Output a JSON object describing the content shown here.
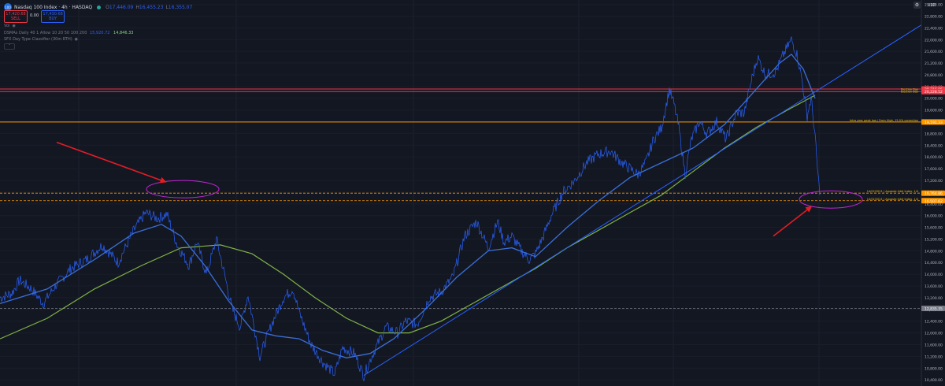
{
  "header": {
    "logo_text": "100",
    "title": "Nasdaq 100 Index · 4h · HASDAQ",
    "ohlc": [
      {
        "k": "O",
        "v": "17,446.09"
      },
      {
        "k": "H",
        "v": "16,455.23"
      },
      {
        "k": "L",
        "v": "16,355.07"
      }
    ],
    "sell_price": "17,420.68",
    "sell_label": "SELL",
    "spread": "0.00",
    "buy_price": "17,430.68",
    "buy_label": "BUY",
    "vol_label": "Vol",
    "indicator_1_name": "DSMAs Daily 40 1 Allow 10 20 50 100 200",
    "indicator_1_val1": "15,920.72",
    "indicator_1_val2": "14,846.33",
    "indicator_2_name": "SFX Day Type Classifier (30m RTH)",
    "collapse_icon": "chevron-up",
    "currency": "USD",
    "top_icon_1": "settings-icon",
    "top_icon_2": "lock-icon"
  },
  "chart_data": {
    "type": "line",
    "symbol": "Nasdaq 100 Index",
    "interval": "4h",
    "exchange": "HASDAQ",
    "y_axis_ticks": [
      "23,200.00",
      "22,800.00",
      "22,400.00",
      "22,000.00",
      "21,600.00",
      "21,200.00",
      "20,800.00",
      "20,400.00",
      "20,000.00",
      "19,600.00",
      "19,200.00",
      "18,800.00",
      "18,400.00",
      "18,000.00",
      "17,600.00",
      "17,200.00",
      "16,800.00",
      "16,400.00",
      "16,000.00",
      "15,600.00",
      "15,200.00",
      "14,800.00",
      "14,400.00",
      "14,000.00",
      "13,600.00",
      "13,200.00",
      "12,800.00",
      "12,400.00",
      "12,000.00",
      "11,600.00",
      "11,200.00",
      "10,800.00",
      "10,400.00"
    ],
    "ylim": [
      10190,
      23350
    ],
    "price_path": [
      [
        0,
        13200
      ],
      [
        15,
        13350
      ],
      [
        25,
        13800
      ],
      [
        40,
        13500
      ],
      [
        55,
        13000
      ],
      [
        70,
        13600
      ],
      [
        90,
        14200
      ],
      [
        110,
        14500
      ],
      [
        130,
        15000
      ],
      [
        150,
        14400
      ],
      [
        170,
        15500
      ],
      [
        185,
        16100
      ],
      [
        200,
        15900
      ],
      [
        212,
        16050
      ],
      [
        225,
        15000
      ],
      [
        240,
        14300
      ],
      [
        250,
        15100
      ],
      [
        262,
        14000
      ],
      [
        275,
        15200
      ],
      [
        285,
        14000
      ],
      [
        295,
        12800
      ],
      [
        305,
        12200
      ],
      [
        315,
        13300
      ],
      [
        330,
        11200
      ],
      [
        345,
        12300
      ],
      [
        360,
        13200
      ],
      [
        372,
        13500
      ],
      [
        380,
        12700
      ],
      [
        395,
        11600
      ],
      [
        410,
        11000
      ],
      [
        425,
        10600
      ],
      [
        435,
        11500
      ],
      [
        450,
        11300
      ],
      [
        462,
        10550
      ],
      [
        472,
        11200
      ],
      [
        490,
        12200
      ],
      [
        505,
        12000
      ],
      [
        515,
        12400
      ],
      [
        530,
        12300
      ],
      [
        545,
        13200
      ],
      [
        560,
        13400
      ],
      [
        575,
        13900
      ],
      [
        590,
        15300
      ],
      [
        605,
        15800
      ],
      [
        620,
        14900
      ],
      [
        632,
        15800
      ],
      [
        640,
        15100
      ],
      [
        650,
        15300
      ],
      [
        662,
        14800
      ],
      [
        672,
        14500
      ],
      [
        680,
        14700
      ],
      [
        690,
        15300
      ],
      [
        700,
        16000
      ],
      [
        715,
        16800
      ],
      [
        730,
        17200
      ],
      [
        745,
        17800
      ],
      [
        760,
        18100
      ],
      [
        775,
        18200
      ],
      [
        790,
        17800
      ],
      [
        800,
        17600
      ],
      [
        810,
        17400
      ],
      [
        820,
        17800
      ],
      [
        830,
        18600
      ],
      [
        840,
        19000
      ],
      [
        850,
        20300
      ],
      [
        856,
        19800
      ],
      [
        862,
        19000
      ],
      [
        870,
        17400
      ],
      [
        878,
        18600
      ],
      [
        888,
        19200
      ],
      [
        898,
        18800
      ],
      [
        910,
        19200
      ],
      [
        922,
        18600
      ],
      [
        935,
        19500
      ],
      [
        945,
        19500
      ],
      [
        955,
        20700
      ],
      [
        962,
        21400
      ],
      [
        972,
        20800
      ],
      [
        985,
        20900
      ],
      [
        995,
        21500
      ],
      [
        1005,
        22000
      ],
      [
        1012,
        21500
      ],
      [
        1018,
        20700
      ],
      [
        1025,
        19400
      ],
      [
        1030,
        20000
      ],
      [
        1035,
        18700
      ],
      [
        1038,
        17600
      ],
      [
        1041,
        16700
      ]
    ],
    "ma_blue_path": [
      [
        0,
        13000
      ],
      [
        60,
        13500
      ],
      [
        120,
        14500
      ],
      [
        170,
        15400
      ],
      [
        205,
        15700
      ],
      [
        230,
        15300
      ],
      [
        260,
        14300
      ],
      [
        290,
        13100
      ],
      [
        320,
        12100
      ],
      [
        350,
        11900
      ],
      [
        380,
        11800
      ],
      [
        410,
        11400
      ],
      [
        440,
        11150
      ],
      [
        470,
        11300
      ],
      [
        500,
        11800
      ],
      [
        540,
        12800
      ],
      [
        580,
        13900
      ],
      [
        620,
        14800
      ],
      [
        650,
        14900
      ],
      [
        680,
        14600
      ],
      [
        720,
        15600
      ],
      [
        760,
        16500
      ],
      [
        800,
        17300
      ],
      [
        840,
        17800
      ],
      [
        880,
        18300
      ],
      [
        920,
        19100
      ],
      [
        960,
        20300
      ],
      [
        990,
        21200
      ],
      [
        1005,
        21500
      ],
      [
        1020,
        21000
      ],
      [
        1035,
        20000
      ]
    ],
    "ma_green_path": [
      [
        0,
        11800
      ],
      [
        60,
        12500
      ],
      [
        120,
        13500
      ],
      [
        180,
        14300
      ],
      [
        230,
        14900
      ],
      [
        280,
        15000
      ],
      [
        320,
        14700
      ],
      [
        360,
        14000
      ],
      [
        400,
        13200
      ],
      [
        440,
        12500
      ],
      [
        480,
        12000
      ],
      [
        520,
        12000
      ],
      [
        560,
        12400
      ],
      [
        600,
        13000
      ],
      [
        640,
        13600
      ],
      [
        680,
        14200
      ],
      [
        720,
        14900
      ],
      [
        760,
        15500
      ],
      [
        800,
        16100
      ],
      [
        840,
        16700
      ],
      [
        880,
        17500
      ],
      [
        920,
        18300
      ],
      [
        960,
        19000
      ],
      [
        1000,
        19600
      ],
      [
        1035,
        20100
      ]
    ],
    "trendline": {
      "start": {
        "x": 462,
        "y": 10550
      },
      "end": {
        "x": 1170,
        "y": 22500
      }
    },
    "horizontal_levels": [
      {
        "price": 20316.06,
        "label": "Election Day",
        "color": "#f23645",
        "badge_text": "20,316.06"
      },
      {
        "price": 20228.52,
        "label": "Election Day",
        "color": "#f23645",
        "badge_text": "20,228.52"
      },
      {
        "price": 19191.33,
        "label": "Intra year peak low / From High, 15.0% correction",
        "color": "#ff9800",
        "badge_text": "19,191.33"
      },
      {
        "price": 16764.86,
        "label": "14/02/2021 | Aquaste Intel Index, 1/4",
        "color": "#ff9800",
        "badge_text": "16,764.86",
        "dashed": true
      },
      {
        "price": 16507.62,
        "label": "14/02/2021 | Aquaste Intel Index, 1/4",
        "color": "#ff9800",
        "badge_text": "16,507.62",
        "dashed": true
      },
      {
        "price": 12835.35,
        "label": "",
        "color": "#787b86",
        "badge_text": "12,835.35",
        "dashed": true
      }
    ],
    "annotations": [
      {
        "type": "ellipse",
        "cx": 232,
        "cy": 16900,
        "color": "#c026d3"
      },
      {
        "type": "ellipse",
        "cx": 1055,
        "cy": 16550,
        "color": "#c026d3"
      },
      {
        "type": "arrow",
        "from": {
          "x": 72,
          "y": 18500
        },
        "to": {
          "x": 210,
          "y": 17150
        },
        "color": "#e11d25"
      },
      {
        "type": "arrow",
        "from": {
          "x": 982,
          "y": 15300
        },
        "to": {
          "x": 1030,
          "y": 16300
        },
        "color": "#e11d25"
      }
    ],
    "grid": true
  }
}
